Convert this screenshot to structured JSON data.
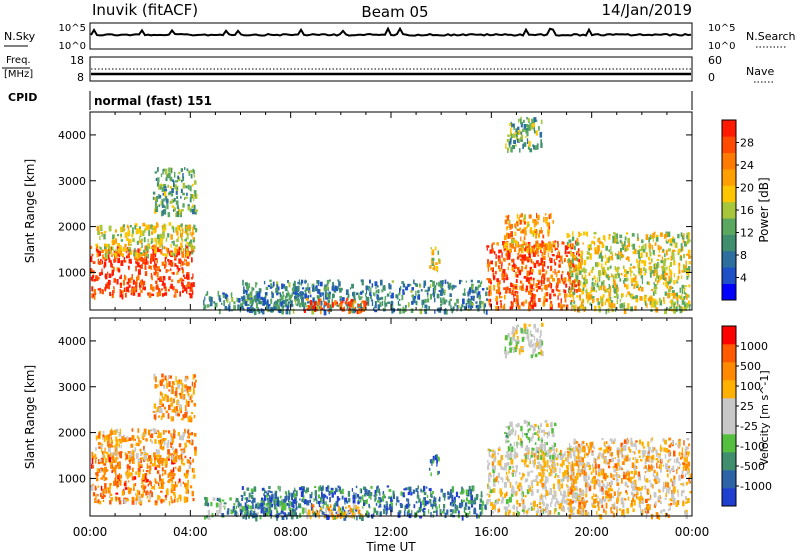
{
  "header": {
    "station": "Inuvik (fitACF)",
    "beam": "Beam 05",
    "date": "14/Jan/2019"
  },
  "panels": {
    "nsky": {
      "left_label": "N.Sky",
      "left_ticks": [
        "10^5",
        "10^0"
      ],
      "right_ticks": [
        "10^5",
        "10^0"
      ],
      "right_label": "N.Search"
    },
    "freq": {
      "left_label_top": "Freq.",
      "left_label_bottom": "[MHz]",
      "left_ticks": [
        "18",
        "8"
      ],
      "right_ticks": [
        "60",
        "0"
      ],
      "right_label": "Nave"
    },
    "cpid": {
      "label": "CPID",
      "mode": "normal (fast) 151"
    }
  },
  "chart_data": [
    {
      "type": "heatmap",
      "title": "",
      "quantity": "Power",
      "xlabel": "Time UT",
      "ylabel": "Slant Range [km]",
      "colorbar_label": "Power [dB]",
      "x_ticks": [
        "00:00",
        "04:00",
        "08:00",
        "12:00",
        "16:00",
        "20:00",
        "00:00"
      ],
      "xlim_hours": [
        0,
        24
      ],
      "ylim_km": [
        180,
        4500
      ],
      "y_ticks": [
        1000,
        2000,
        3000,
        4000
      ],
      "colorbar": {
        "ticks": [
          4,
          8,
          12,
          16,
          20,
          24,
          28
        ],
        "colors": [
          "#0000ff",
          "#1e50c8",
          "#2c6f9e",
          "#3f8f6f",
          "#5aa860",
          "#a8c63a",
          "#ffc600",
          "#ffa000",
          "#ff7a00",
          "#ff4a00",
          "#ff1a00"
        ]
      },
      "regions": [
        {
          "t": [
            0.0,
            4.1
          ],
          "r": [
            500,
            1600
          ],
          "level": 0.9
        },
        {
          "t": [
            0.2,
            4.2
          ],
          "r": [
            1400,
            2100
          ],
          "level": 0.55
        },
        {
          "t": [
            2.5,
            4.2
          ],
          "r": [
            2300,
            3300
          ],
          "level": 0.4
        },
        {
          "t": [
            4.5,
            8.0
          ],
          "r": [
            180,
            600
          ],
          "level": 0.3
        },
        {
          "t": [
            6.0,
            15.8
          ],
          "r": [
            180,
            850
          ],
          "level": 0.3
        },
        {
          "t": [
            8.5,
            11.0
          ],
          "r": [
            180,
            450
          ],
          "level": 0.85
        },
        {
          "t": [
            13.5,
            13.9
          ],
          "r": [
            1100,
            1600
          ],
          "level": 0.55
        },
        {
          "t": [
            15.8,
            19.5
          ],
          "r": [
            250,
            1700
          ],
          "level": 0.85
        },
        {
          "t": [
            16.5,
            18.5
          ],
          "r": [
            1500,
            2300
          ],
          "level": 0.7
        },
        {
          "t": [
            19.0,
            23.9
          ],
          "r": [
            200,
            1900
          ],
          "level": 0.55
        },
        {
          "t": [
            16.5,
            18.0
          ],
          "r": [
            3700,
            4400
          ],
          "level": 0.4
        }
      ]
    },
    {
      "type": "heatmap",
      "title": "",
      "quantity": "Velocity",
      "xlabel": "Time UT",
      "ylabel": "Slant Range [km]",
      "colorbar_label": "Velocity [m s^-1]",
      "x_ticks": [
        "00:00",
        "04:00",
        "08:00",
        "12:00",
        "16:00",
        "20:00",
        "00:00"
      ],
      "xlim_hours": [
        0,
        24
      ],
      "ylim_km": [
        180,
        4500
      ],
      "y_ticks": [
        1000,
        2000,
        3000,
        4000
      ],
      "colorbar": {
        "ticks": [
          1000,
          500,
          100,
          25,
          -25,
          -100,
          -500,
          -1000
        ],
        "colors": [
          "#1f3fd0",
          "#2d64a8",
          "#3f8f6f",
          "#55c040",
          "#c8c8c8",
          "#c8c8c8",
          "#ffb000",
          "#ff8a00",
          "#ff5a00",
          "#ff0000"
        ]
      },
      "regions": [
        {
          "t": [
            0.0,
            4.1
          ],
          "r": [
            500,
            1600
          ],
          "level": 0.75
        },
        {
          "t": [
            0.2,
            4.2
          ],
          "r": [
            1400,
            2100
          ],
          "level": 0.7
        },
        {
          "t": [
            2.5,
            4.2
          ],
          "r": [
            2300,
            3300
          ],
          "level": 0.7
        },
        {
          "t": [
            4.5,
            8.0
          ],
          "r": [
            180,
            600
          ],
          "level": 0.3
        },
        {
          "t": [
            6.0,
            15.8
          ],
          "r": [
            180,
            850
          ],
          "level": 0.2
        },
        {
          "t": [
            8.5,
            11.0
          ],
          "r": [
            180,
            450
          ],
          "level": 0.65
        },
        {
          "t": [
            13.5,
            13.9
          ],
          "r": [
            1100,
            1600
          ],
          "level": 0.2
        },
        {
          "t": [
            15.8,
            19.5
          ],
          "r": [
            250,
            1700
          ],
          "level": 0.55
        },
        {
          "t": [
            16.5,
            18.5
          ],
          "r": [
            1500,
            2300
          ],
          "level": 0.45
        },
        {
          "t": [
            19.0,
            23.9
          ],
          "r": [
            200,
            1900
          ],
          "level": 0.65
        },
        {
          "t": [
            16.5,
            18.0
          ],
          "r": [
            3700,
            4400
          ],
          "level": 0.5
        }
      ]
    }
  ]
}
